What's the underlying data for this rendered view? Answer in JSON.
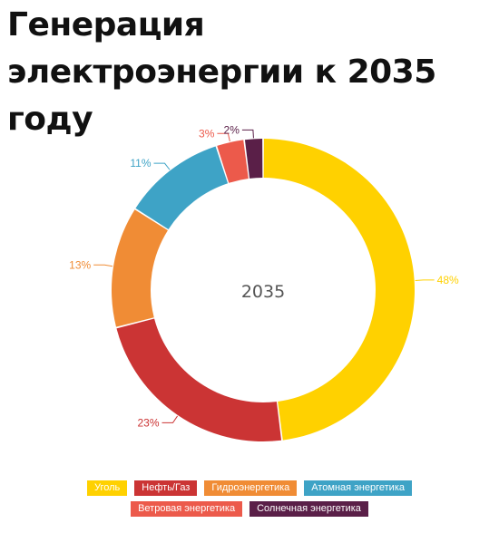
{
  "title": "Генерация электроэнергии к 2035 году",
  "chart_data": {
    "type": "pie",
    "style": "donut",
    "center_label": "2035",
    "series": [
      {
        "name": "Уголь",
        "value": 48,
        "label": "48%",
        "color": "#FFD100"
      },
      {
        "name": "Нефть/Газ",
        "value": 23,
        "label": "23%",
        "color": "#CB3434"
      },
      {
        "name": "Гидроэнергетика",
        "value": 13,
        "label": "13%",
        "color": "#F08C35"
      },
      {
        "name": "Атомная энергетика",
        "value": 11,
        "label": "11%",
        "color": "#3EA3C6"
      },
      {
        "name": "Ветровая энергетика",
        "value": 3,
        "label": "3%",
        "color": "#EC5A4B"
      },
      {
        "name": "Солнечная энергетика",
        "value": 2,
        "label": "2%",
        "color": "#5A1F48"
      }
    ],
    "legend": {
      "placement": "bottom",
      "rows": [
        [
          "Уголь",
          "Нефть/Газ",
          "Гидроэнергетика",
          "Атомная энергетика"
        ],
        [
          "Ветровая энергетика",
          "Солнечная энергетика"
        ]
      ]
    }
  }
}
